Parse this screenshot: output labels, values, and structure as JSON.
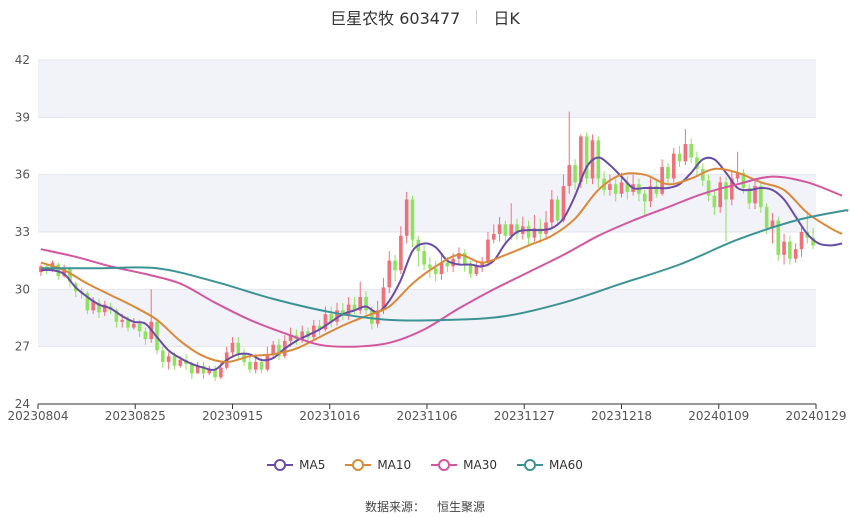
{
  "header": {
    "title": "巨星农牧 603477",
    "period": "日K"
  },
  "source": {
    "label": "数据来源：",
    "value": "恒生聚源"
  },
  "colors": {
    "up": "#f0707a",
    "down": "#8ee25e",
    "ma5": "#6a4ca4",
    "ma10": "#d9893a",
    "ma30": "#d2579e",
    "ma60": "#3d9393",
    "band": "#f2f3f9",
    "axis": "#333333"
  },
  "chart_data": {
    "type": "candlestick",
    "ylim": [
      24,
      42
    ],
    "y_ticks": [
      "42",
      "39",
      "36",
      "33",
      "30",
      "27",
      "24"
    ],
    "x_ticks": [
      "20230804",
      "20230825",
      "20230915",
      "20231016",
      "20231106",
      "20231127",
      "20231218",
      "20240109",
      "20240129"
    ],
    "legend": [
      "MA5",
      "MA10",
      "MA30",
      "MA60"
    ],
    "candles": [
      [
        30.9,
        31.2,
        31.3,
        30.7
      ],
      [
        31.2,
        31.0,
        31.3,
        30.8
      ],
      [
        31.0,
        31.4,
        31.5,
        30.9
      ],
      [
        31.3,
        30.7,
        31.4,
        30.5
      ],
      [
        30.7,
        31.1,
        31.3,
        30.6
      ],
      [
        31.1,
        30.4,
        31.2,
        30.1
      ],
      [
        30.3,
        29.9,
        30.4,
        29.6
      ],
      [
        29.9,
        29.8,
        30.1,
        29.5
      ],
      [
        29.8,
        28.9,
        29.9,
        28.7
      ],
      [
        28.9,
        29.4,
        29.6,
        28.7
      ],
      [
        29.3,
        28.8,
        29.5,
        28.5
      ],
      [
        28.8,
        29.2,
        29.4,
        28.6
      ],
      [
        29.1,
        28.9,
        29.3,
        28.7
      ],
      [
        28.9,
        28.3,
        29.0,
        28.0
      ],
      [
        28.3,
        28.4,
        28.7,
        28.0
      ],
      [
        28.4,
        28.0,
        28.6,
        27.8
      ],
      [
        28.0,
        28.2,
        28.5,
        27.9
      ],
      [
        28.2,
        27.8,
        28.4,
        27.5
      ],
      [
        27.8,
        27.4,
        28.0,
        27.1
      ],
      [
        27.4,
        28.3,
        30.0,
        27.2
      ],
      [
        28.3,
        26.8,
        28.5,
        26.6
      ],
      [
        26.8,
        26.2,
        27.0,
        25.9
      ],
      [
        26.2,
        26.5,
        26.7,
        25.8
      ],
      [
        26.5,
        26.0,
        26.7,
        25.8
      ],
      [
        26.0,
        26.3,
        26.5,
        25.9
      ],
      [
        26.3,
        26.1,
        26.6,
        25.8
      ],
      [
        26.1,
        25.6,
        26.2,
        25.3
      ],
      [
        25.6,
        26.0,
        26.2,
        25.6
      ],
      [
        26.0,
        25.6,
        26.2,
        25.3
      ],
      [
        25.6,
        25.8,
        26.0,
        25.5
      ],
      [
        25.8,
        25.4,
        26.0,
        25.2
      ],
      [
        25.4,
        25.9,
        26.2,
        25.3
      ],
      [
        25.9,
        26.7,
        27.0,
        25.8
      ],
      [
        26.7,
        27.2,
        27.5,
        26.5
      ],
      [
        27.2,
        26.6,
        27.5,
        26.4
      ],
      [
        26.6,
        26.2,
        26.9,
        26.0
      ],
      [
        26.2,
        25.8,
        26.5,
        25.6
      ],
      [
        25.8,
        26.2,
        26.6,
        25.6
      ],
      [
        26.2,
        25.8,
        26.4,
        25.6
      ],
      [
        25.8,
        26.6,
        27.0,
        25.7
      ],
      [
        26.6,
        27.1,
        27.3,
        26.4
      ],
      [
        27.1,
        26.5,
        27.4,
        26.3
      ],
      [
        26.5,
        27.3,
        27.6,
        26.4
      ],
      [
        27.3,
        27.6,
        28.0,
        27.0
      ],
      [
        27.6,
        27.4,
        27.9,
        27.1
      ],
      [
        27.4,
        27.8,
        28.1,
        27.2
      ],
      [
        27.8,
        27.5,
        28.0,
        27.3
      ],
      [
        27.5,
        28.1,
        28.4,
        27.3
      ],
      [
        28.1,
        27.9,
        28.4,
        27.6
      ],
      [
        27.9,
        28.7,
        29.1,
        27.8
      ],
      [
        28.7,
        28.3,
        29.1,
        28.0
      ],
      [
        28.3,
        28.9,
        29.3,
        28.1
      ],
      [
        28.9,
        28.6,
        29.3,
        28.4
      ],
      [
        28.6,
        29.2,
        29.6,
        28.4
      ],
      [
        29.2,
        28.9,
        29.6,
        28.7
      ],
      [
        28.9,
        29.6,
        30.4,
        28.7
      ],
      [
        29.6,
        28.9,
        29.9,
        28.7
      ],
      [
        28.9,
        28.2,
        29.1,
        27.9
      ],
      [
        28.2,
        28.9,
        29.4,
        28.0
      ],
      [
        28.9,
        30.1,
        30.6,
        28.7
      ],
      [
        30.1,
        31.5,
        32.0,
        29.8
      ],
      [
        31.5,
        31.0,
        31.8,
        30.4
      ],
      [
        31.0,
        32.8,
        33.3,
        30.8
      ],
      [
        32.8,
        34.7,
        35.1,
        32.4
      ],
      [
        34.7,
        32.6,
        34.9,
        32.2
      ],
      [
        32.6,
        32.0,
        32.8,
        31.2
      ],
      [
        32.0,
        31.3,
        32.3,
        31.0
      ],
      [
        31.3,
        31.1,
        31.7,
        30.6
      ],
      [
        31.1,
        30.8,
        31.5,
        30.4
      ],
      [
        30.8,
        31.4,
        31.8,
        30.5
      ],
      [
        31.4,
        31.2,
        31.7,
        30.9
      ],
      [
        31.2,
        31.6,
        31.9,
        30.9
      ],
      [
        31.6,
        31.9,
        32.2,
        31.3
      ],
      [
        31.9,
        31.3,
        32.1,
        30.9
      ],
      [
        31.3,
        30.8,
        31.5,
        30.6
      ],
      [
        30.8,
        31.2,
        31.5,
        30.7
      ],
      [
        31.2,
        31.4,
        31.7,
        30.9
      ],
      [
        31.4,
        32.6,
        33.0,
        31.2
      ],
      [
        32.6,
        32.9,
        33.4,
        32.4
      ],
      [
        32.9,
        33.4,
        33.8,
        32.5
      ],
      [
        33.4,
        32.8,
        33.6,
        32.3
      ],
      [
        32.8,
        33.4,
        34.5,
        32.6
      ],
      [
        33.4,
        32.9,
        33.7,
        32.6
      ],
      [
        32.9,
        33.3,
        33.8,
        32.6
      ],
      [
        33.3,
        32.7,
        33.6,
        32.3
      ],
      [
        32.7,
        33.2,
        33.9,
        32.5
      ],
      [
        33.2,
        32.9,
        33.7,
        32.4
      ],
      [
        32.9,
        33.5,
        34.1,
        32.6
      ],
      [
        33.5,
        34.7,
        35.2,
        33.2
      ],
      [
        34.7,
        33.6,
        34.9,
        33.3
      ],
      [
        33.6,
        35.4,
        36.0,
        33.5
      ],
      [
        35.4,
        36.5,
        39.3,
        35.0
      ],
      [
        36.5,
        35.6,
        36.8,
        35.2
      ],
      [
        35.6,
        38.0,
        38.1,
        35.3
      ],
      [
        38.0,
        35.8,
        38.2,
        35.5
      ],
      [
        35.8,
        37.8,
        38.1,
        35.5
      ],
      [
        37.8,
        35.8,
        38.0,
        35.3
      ],
      [
        35.8,
        35.2,
        36.2,
        34.9
      ],
      [
        35.2,
        35.5,
        36.0,
        34.9
      ],
      [
        35.5,
        35.0,
        35.8,
        34.6
      ],
      [
        35.0,
        35.6,
        36.1,
        34.8
      ],
      [
        35.6,
        35.1,
        35.9,
        34.7
      ],
      [
        35.1,
        35.5,
        36.0,
        34.9
      ],
      [
        35.5,
        35.0,
        35.8,
        34.6
      ],
      [
        35.0,
        34.6,
        35.2,
        33.8
      ],
      [
        34.6,
        35.4,
        35.8,
        34.3
      ],
      [
        35.4,
        35.0,
        35.7,
        34.8
      ],
      [
        35.0,
        36.4,
        36.8,
        34.9
      ],
      [
        36.4,
        35.8,
        36.6,
        35.5
      ],
      [
        35.8,
        37.1,
        37.4,
        35.6
      ],
      [
        37.1,
        36.7,
        37.5,
        36.4
      ],
      [
        36.7,
        37.6,
        38.4,
        36.5
      ],
      [
        37.6,
        36.9,
        37.9,
        36.6
      ],
      [
        36.9,
        36.3,
        37.2,
        35.9
      ],
      [
        36.3,
        35.7,
        36.6,
        35.4
      ],
      [
        35.7,
        34.9,
        36.0,
        34.6
      ],
      [
        34.9,
        34.3,
        35.2,
        33.9
      ],
      [
        34.3,
        35.6,
        35.9,
        34.0
      ],
      [
        35.6,
        34.7,
        35.9,
        32.5
      ],
      [
        34.7,
        35.8,
        36.2,
        34.4
      ],
      [
        35.8,
        36.1,
        37.2,
        35.6
      ],
      [
        36.1,
        35.3,
        36.3,
        35.0
      ],
      [
        35.3,
        34.5,
        35.5,
        34.2
      ],
      [
        34.5,
        35.4,
        35.8,
        34.2
      ],
      [
        35.4,
        34.3,
        35.6,
        34.0
      ],
      [
        34.3,
        33.2,
        34.5,
        32.9
      ],
      [
        33.2,
        33.6,
        34.0,
        32.4
      ],
      [
        33.6,
        31.8,
        33.8,
        31.5
      ],
      [
        31.8,
        32.5,
        32.9,
        31.3
      ],
      [
        32.5,
        31.6,
        32.8,
        31.3
      ],
      [
        31.6,
        32.1,
        32.4,
        31.4
      ],
      [
        32.1,
        33.0,
        33.3,
        31.7
      ],
      [
        33.0,
        32.7,
        34.1,
        32.4
      ],
      [
        32.7,
        32.3,
        33.2,
        32.1
      ]
    ],
    "ma_series": [
      {
        "name": "MA5",
        "values": [
          [
            0,
            31.0
          ],
          [
            2,
            31.0
          ],
          [
            4,
            30.8
          ],
          [
            6,
            30.1
          ],
          [
            8,
            29.6
          ],
          [
            10,
            29.2
          ],
          [
            12,
            29.0
          ],
          [
            14,
            28.6
          ],
          [
            16,
            28.3
          ],
          [
            18,
            28.2
          ],
          [
            20,
            27.5
          ],
          [
            22,
            26.8
          ],
          [
            24,
            26.4
          ],
          [
            26,
            26.1
          ],
          [
            28,
            25.9
          ],
          [
            30,
            25.8
          ],
          [
            32,
            26.3
          ],
          [
            34,
            26.6
          ],
          [
            36,
            26.6
          ],
          [
            38,
            26.3
          ],
          [
            40,
            26.4
          ],
          [
            42,
            26.9
          ],
          [
            44,
            27.3
          ],
          [
            46,
            27.6
          ],
          [
            48,
            27.9
          ],
          [
            50,
            28.3
          ],
          [
            52,
            28.7
          ],
          [
            54,
            28.9
          ],
          [
            56,
            29.1
          ],
          [
            58,
            28.8
          ],
          [
            60,
            29.4
          ],
          [
            62,
            30.5
          ],
          [
            64,
            32.0
          ],
          [
            66,
            32.4
          ],
          [
            68,
            32.2
          ],
          [
            70,
            31.5
          ],
          [
            72,
            31.3
          ],
          [
            74,
            31.3
          ],
          [
            76,
            31.2
          ],
          [
            78,
            31.5
          ],
          [
            80,
            32.4
          ],
          [
            82,
            33.0
          ],
          [
            84,
            33.1
          ],
          [
            86,
            33.1
          ],
          [
            88,
            33.2
          ],
          [
            90,
            33.7
          ],
          [
            92,
            34.9
          ],
          [
            94,
            36.4
          ],
          [
            96,
            36.9
          ],
          [
            98,
            36.5
          ],
          [
            100,
            35.9
          ],
          [
            102,
            35.3
          ],
          [
            104,
            35.3
          ],
          [
            106,
            35.3
          ],
          [
            108,
            35.3
          ],
          [
            110,
            35.5
          ],
          [
            112,
            36.1
          ],
          [
            114,
            36.8
          ],
          [
            116,
            36.8
          ],
          [
            118,
            36.1
          ],
          [
            120,
            35.3
          ],
          [
            122,
            35.2
          ],
          [
            124,
            35.3
          ],
          [
            126,
            35.2
          ],
          [
            128,
            34.7
          ],
          [
            130,
            33.8
          ],
          [
            132,
            32.9
          ],
          [
            134,
            32.4
          ],
          [
            136,
            32.3
          ],
          [
            138,
            32.4
          ]
        ]
      },
      {
        "name": "MA10",
        "values": [
          [
            0,
            31.4
          ],
          [
            4,
            31.0
          ],
          [
            8,
            30.3
          ],
          [
            12,
            29.7
          ],
          [
            16,
            29.1
          ],
          [
            20,
            28.4
          ],
          [
            24,
            27.3
          ],
          [
            28,
            26.5
          ],
          [
            32,
            26.2
          ],
          [
            36,
            26.5
          ],
          [
            40,
            26.6
          ],
          [
            44,
            26.9
          ],
          [
            48,
            27.5
          ],
          [
            52,
            28.1
          ],
          [
            56,
            28.6
          ],
          [
            60,
            29.1
          ],
          [
            64,
            30.3
          ],
          [
            68,
            31.2
          ],
          [
            72,
            31.8
          ],
          [
            76,
            31.4
          ],
          [
            80,
            31.8
          ],
          [
            84,
            32.3
          ],
          [
            88,
            32.8
          ],
          [
            92,
            33.7
          ],
          [
            96,
            35.2
          ],
          [
            100,
            36.0
          ],
          [
            104,
            36.0
          ],
          [
            108,
            35.5
          ],
          [
            112,
            35.8
          ],
          [
            116,
            36.3
          ],
          [
            120,
            36.1
          ],
          [
            124,
            35.6
          ],
          [
            128,
            35.2
          ],
          [
            132,
            34.0
          ],
          [
            136,
            33.2
          ],
          [
            138,
            32.9
          ]
        ]
      },
      {
        "name": "MA30",
        "values": [
          [
            0,
            32.1
          ],
          [
            6,
            31.7
          ],
          [
            12,
            31.2
          ],
          [
            18,
            30.8
          ],
          [
            24,
            30.3
          ],
          [
            30,
            29.3
          ],
          [
            36,
            28.4
          ],
          [
            42,
            27.7
          ],
          [
            48,
            27.1
          ],
          [
            54,
            27.0
          ],
          [
            60,
            27.2
          ],
          [
            66,
            27.9
          ],
          [
            72,
            29.0
          ],
          [
            78,
            30.0
          ],
          [
            84,
            30.9
          ],
          [
            90,
            31.8
          ],
          [
            96,
            32.8
          ],
          [
            102,
            33.6
          ],
          [
            108,
            34.3
          ],
          [
            114,
            35.0
          ],
          [
            120,
            35.5
          ],
          [
            126,
            35.9
          ],
          [
            132,
            35.6
          ],
          [
            138,
            34.9
          ]
        ]
      },
      {
        "name": "MA60",
        "values": [
          [
            0,
            31.1
          ],
          [
            10,
            31.1
          ],
          [
            20,
            31.1
          ],
          [
            30,
            30.4
          ],
          [
            40,
            29.5
          ],
          [
            50,
            28.8
          ],
          [
            60,
            28.4
          ],
          [
            70,
            28.4
          ],
          [
            80,
            28.6
          ],
          [
            90,
            29.3
          ],
          [
            100,
            30.3
          ],
          [
            110,
            31.3
          ],
          [
            120,
            32.6
          ],
          [
            130,
            33.6
          ],
          [
            138,
            34.1
          ],
          [
            139,
            34.1
          ]
        ]
      }
    ]
  }
}
